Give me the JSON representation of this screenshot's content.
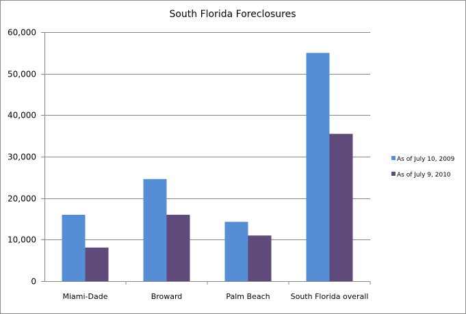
{
  "chart_data": {
    "type": "bar",
    "title": "South Florida Foreclosures",
    "xlabel": "",
    "ylabel": "",
    "categories": [
      "Miami-Dade",
      "Broward",
      "Palm Beach",
      "South Florida overall"
    ],
    "series": [
      {
        "name": "As of July 10, 2009",
        "color": "#558ED5",
        "values": [
          16000,
          24600,
          14300,
          55000
        ]
      },
      {
        "name": "As of July 9, 2010",
        "color": "#604A7B",
        "values": [
          8100,
          16000,
          11000,
          35500
        ]
      }
    ],
    "ylim": [
      0,
      60000
    ],
    "yticks": [
      0,
      10000,
      20000,
      30000,
      40000,
      50000,
      60000
    ],
    "ytick_labels": [
      "0",
      "10,000",
      "20,000",
      "30,000",
      "40,000",
      "50,000",
      "60,000"
    ],
    "grid": true,
    "legend_position": "right"
  }
}
